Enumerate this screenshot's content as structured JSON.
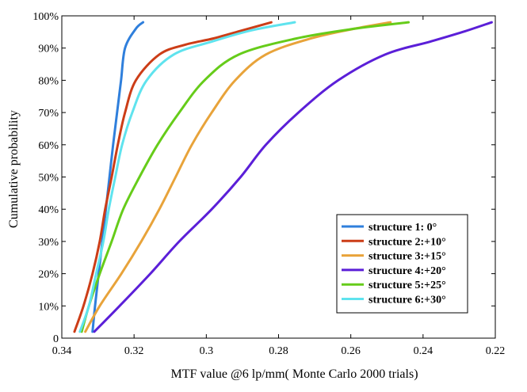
{
  "chart_data": {
    "type": "line",
    "title": "",
    "xlabel": "MTF value @6 lp/mm( Monte Carlo 2000 trials)",
    "ylabel": "Cumulative probability",
    "xlim": [
      0.34,
      0.22
    ],
    "ylim": [
      0,
      100
    ],
    "x_reversed": true,
    "grid": false,
    "legend_position": "bottom-right",
    "x_ticks": [
      0.34,
      0.32,
      0.3,
      0.28,
      0.26,
      0.24,
      0.22
    ],
    "x_tick_labels": [
      "0.34",
      "0.32",
      "0.3",
      "0.28",
      "0.26",
      "0.24",
      "0.22"
    ],
    "y_ticks": [
      0,
      10,
      20,
      30,
      40,
      50,
      60,
      70,
      80,
      90,
      100
    ],
    "y_tick_labels": [
      "0",
      "10%",
      "20%",
      "30%",
      "40%",
      "50%",
      "60%",
      "70%",
      "80%",
      "90%",
      "100%"
    ],
    "series": [
      {
        "name": "structure 1: 0°",
        "color": "#2F7FDC",
        "points": [
          [
            0.3315,
            2
          ],
          [
            0.3308,
            10
          ],
          [
            0.3298,
            20
          ],
          [
            0.3288,
            30
          ],
          [
            0.3278,
            40
          ],
          [
            0.3268,
            50
          ],
          [
            0.3258,
            60
          ],
          [
            0.3247,
            70
          ],
          [
            0.3236,
            80
          ],
          [
            0.3225,
            90
          ],
          [
            0.3195,
            96
          ],
          [
            0.3175,
            98
          ]
        ]
      },
      {
        "name": "structure 2:+10°",
        "color": "#CC3D17",
        "points": [
          [
            0.3365,
            2
          ],
          [
            0.334,
            10
          ],
          [
            0.3315,
            20
          ],
          [
            0.3295,
            30
          ],
          [
            0.328,
            40
          ],
          [
            0.3262,
            50
          ],
          [
            0.3245,
            60
          ],
          [
            0.3225,
            70
          ],
          [
            0.3195,
            80
          ],
          [
            0.313,
            88
          ],
          [
            0.306,
            91
          ],
          [
            0.298,
            93
          ],
          [
            0.29,
            95.5
          ],
          [
            0.282,
            98
          ]
        ]
      },
      {
        "name": "structure 3:+15°",
        "color": "#E8A33A",
        "points": [
          [
            0.3335,
            2
          ],
          [
            0.3295,
            10
          ],
          [
            0.3235,
            20
          ],
          [
            0.318,
            30
          ],
          [
            0.313,
            40
          ],
          [
            0.3085,
            50
          ],
          [
            0.304,
            60
          ],
          [
            0.2985,
            70
          ],
          [
            0.292,
            80
          ],
          [
            0.2835,
            88
          ],
          [
            0.271,
            93
          ],
          [
            0.259,
            96
          ],
          [
            0.249,
            98
          ]
        ]
      },
      {
        "name": "structure 4:+20°",
        "color": "#5B1FD8",
        "points": [
          [
            0.331,
            2
          ],
          [
            0.324,
            10
          ],
          [
            0.3155,
            20
          ],
          [
            0.3075,
            30
          ],
          [
            0.2985,
            40
          ],
          [
            0.2905,
            50
          ],
          [
            0.2835,
            60
          ],
          [
            0.2745,
            70
          ],
          [
            0.2635,
            80
          ],
          [
            0.2505,
            88
          ],
          [
            0.238,
            92
          ],
          [
            0.229,
            95
          ],
          [
            0.221,
            98
          ]
        ]
      },
      {
        "name": "structure 5:+25°",
        "color": "#66CC1A",
        "points": [
          [
            0.3345,
            2
          ],
          [
            0.3325,
            10
          ],
          [
            0.3295,
            20
          ],
          [
            0.3262,
            30
          ],
          [
            0.323,
            40
          ],
          [
            0.3185,
            50
          ],
          [
            0.3135,
            60
          ],
          [
            0.3075,
            70
          ],
          [
            0.3005,
            80
          ],
          [
            0.291,
            88
          ],
          [
            0.275,
            93
          ],
          [
            0.259,
            96
          ],
          [
            0.244,
            98
          ]
        ]
      },
      {
        "name": "structure 6:+30°",
        "color": "#5FE3EE",
        "points": [
          [
            0.335,
            2
          ],
          [
            0.3325,
            10
          ],
          [
            0.3305,
            20
          ],
          [
            0.3285,
            30
          ],
          [
            0.327,
            40
          ],
          [
            0.3252,
            50
          ],
          [
            0.3233,
            60
          ],
          [
            0.3205,
            70
          ],
          [
            0.3165,
            80
          ],
          [
            0.309,
            88
          ],
          [
            0.2985,
            92
          ],
          [
            0.2875,
            95.5
          ],
          [
            0.2755,
            98
          ]
        ]
      }
    ]
  }
}
